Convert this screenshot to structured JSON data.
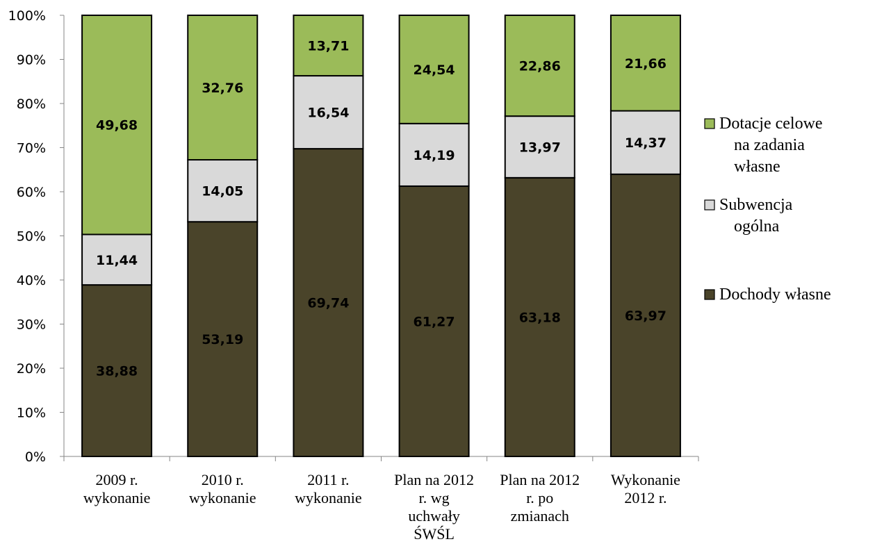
{
  "chart_data": {
    "type": "bar",
    "stacked": true,
    "normalized_percent": true,
    "categories": [
      [
        "2009 r.",
        "wykonanie"
      ],
      [
        "2010 r.",
        "wykonanie"
      ],
      [
        "2011 r.",
        "wykonanie"
      ],
      [
        "Plan na 2012",
        "r. wg",
        "uchwały",
        "ŚWŚL"
      ],
      [
        "Plan na 2012",
        "r. po",
        "zmianach"
      ],
      [
        "Wykonanie",
        "2012 r."
      ]
    ],
    "series": [
      {
        "name": "Dochody własne",
        "color": "#4a442a",
        "label_color": "#000000",
        "values": [
          38.88,
          53.19,
          69.74,
          61.27,
          63.18,
          63.97
        ],
        "labels": [
          "38,88",
          "53,19",
          "69,74",
          "61,27",
          "63,18",
          "63,97"
        ]
      },
      {
        "name": "Subwencja ogólna",
        "color": "#d9d9d9",
        "label_color": "#000000",
        "values": [
          11.44,
          14.05,
          16.54,
          14.19,
          13.97,
          14.37
        ],
        "labels": [
          "11,44",
          "14,05",
          "16,54",
          "14,19",
          "13,97",
          "14,37"
        ]
      },
      {
        "name": "Dotacje celowe na zadania własne",
        "color": "#9bbb59",
        "label_color": "#000000",
        "values": [
          49.68,
          32.76,
          13.71,
          24.54,
          22.86,
          21.66
        ],
        "labels": [
          "49,68",
          "32,76",
          "13,71",
          "24,54",
          "22,86",
          "21,66"
        ]
      }
    ],
    "ylim": [
      0,
      100
    ],
    "y_ticks": [
      "0%",
      "10%",
      "20%",
      "30%",
      "40%",
      "50%",
      "60%",
      "70%",
      "80%",
      "90%",
      "100%"
    ],
    "legend": {
      "position": "right",
      "entries": [
        {
          "lines": [
            "Dotacje celowe",
            "na zadania",
            "własne"
          ],
          "color": "#9bbb59"
        },
        {
          "lines": [
            "Subwencja",
            "ogólna"
          ],
          "color": "#d9d9d9"
        },
        {
          "lines": [
            "Dochody własne"
          ],
          "color": "#4a442a"
        }
      ]
    },
    "grid": false
  }
}
